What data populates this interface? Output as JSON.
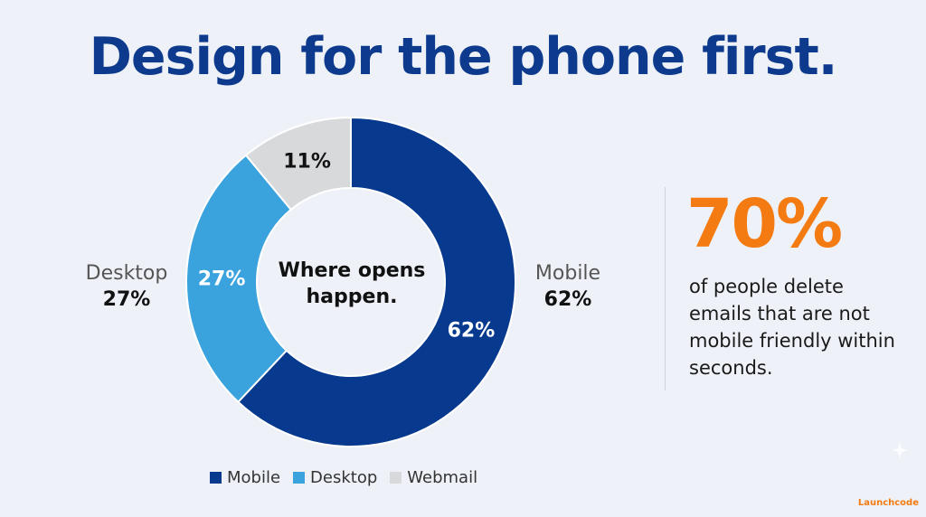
{
  "title": "Design for the phone first.",
  "chart_data": {
    "type": "pie",
    "donut": true,
    "center_text": [
      "Where opens",
      "happen."
    ],
    "slices": [
      {
        "name": "Mobile",
        "value": 62,
        "label": "62%",
        "color": "#073a8e"
      },
      {
        "name": "Desktop",
        "value": 27,
        "label": "27%",
        "color": "#3aa2dd"
      },
      {
        "name": "Webmail",
        "value": 11,
        "label": "11%",
        "color": "#d8d9db"
      }
    ],
    "legend": {
      "placement": "bottom",
      "entries": [
        "Mobile",
        "Desktop",
        "Webmail"
      ]
    }
  },
  "callouts": {
    "desktop": {
      "name": "Desktop",
      "value": "27%"
    },
    "mobile": {
      "name": "Mobile",
      "value": "62%"
    }
  },
  "stat": {
    "value": "70%",
    "text": "of people delete emails that are not mobile friendly within seconds."
  },
  "brand": "Launchcode"
}
